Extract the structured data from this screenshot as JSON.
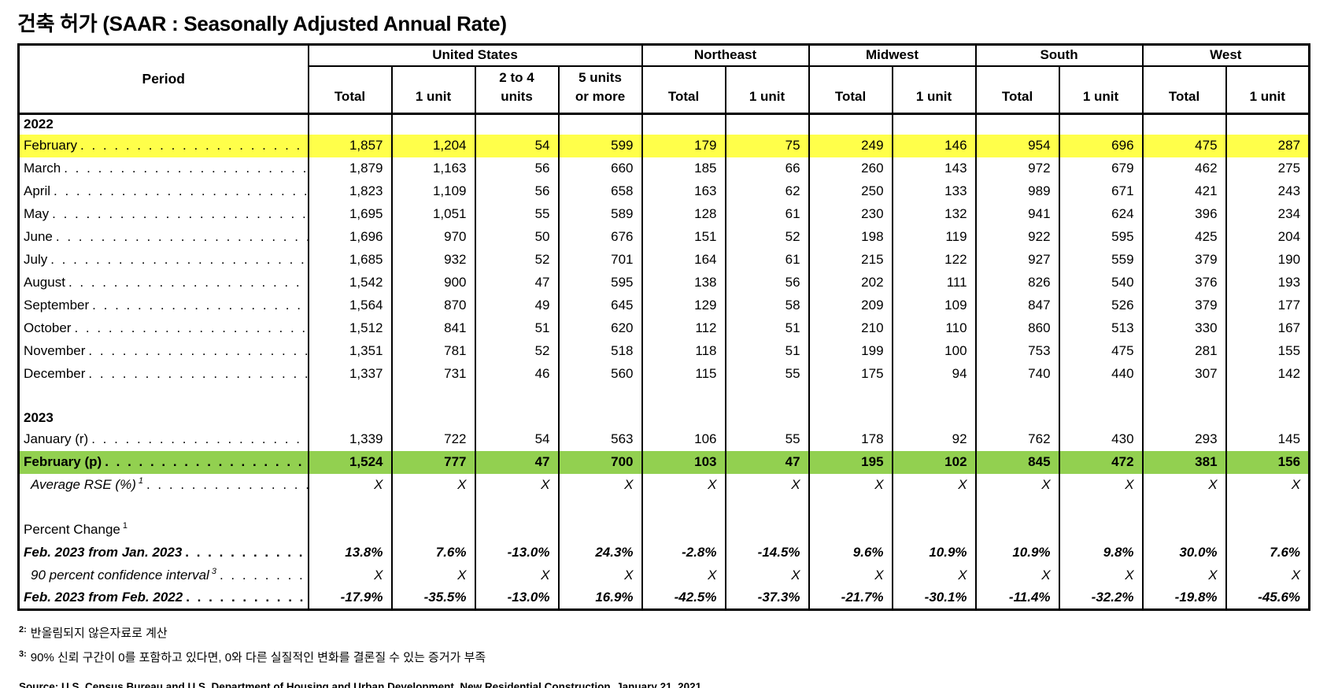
{
  "title": "건축 허가 (SAAR : Seasonally Adjusted Annual Rate)",
  "colors": {
    "highlight_yellow": "#FFFF4A",
    "highlight_green": "#92D050",
    "border": "#000000"
  },
  "table": {
    "period_header": "Period",
    "groups": [
      {
        "label": "United States",
        "span": 4
      },
      {
        "label": "Northeast",
        "span": 2
      },
      {
        "label": "Midwest",
        "span": 2
      },
      {
        "label": "South",
        "span": 2
      },
      {
        "label": "West",
        "span": 2
      }
    ],
    "sub_headers": [
      "Total",
      "1 unit",
      "2 to 4\nunits",
      "5 units\nor more",
      "Total",
      "1 unit",
      "Total",
      "1 unit",
      "Total",
      "1 unit",
      "Total",
      "1 unit"
    ],
    "rows": [
      {
        "type": "year",
        "label": "2022"
      },
      {
        "type": "data",
        "label": "February",
        "highlight": "yellow",
        "values": [
          "1,857",
          "1,204",
          "54",
          "599",
          "179",
          "75",
          "249",
          "146",
          "954",
          "696",
          "475",
          "287"
        ]
      },
      {
        "type": "data",
        "label": "March",
        "values": [
          "1,879",
          "1,163",
          "56",
          "660",
          "185",
          "66",
          "260",
          "143",
          "972",
          "679",
          "462",
          "275"
        ]
      },
      {
        "type": "data",
        "label": "April",
        "values": [
          "1,823",
          "1,109",
          "56",
          "658",
          "163",
          "62",
          "250",
          "133",
          "989",
          "671",
          "421",
          "243"
        ]
      },
      {
        "type": "data",
        "label": "May",
        "values": [
          "1,695",
          "1,051",
          "55",
          "589",
          "128",
          "61",
          "230",
          "132",
          "941",
          "624",
          "396",
          "234"
        ]
      },
      {
        "type": "data",
        "label": "June",
        "values": [
          "1,696",
          "970",
          "50",
          "676",
          "151",
          "52",
          "198",
          "119",
          "922",
          "595",
          "425",
          "204"
        ]
      },
      {
        "type": "data",
        "label": "July",
        "values": [
          "1,685",
          "932",
          "52",
          "701",
          "164",
          "61",
          "215",
          "122",
          "927",
          "559",
          "379",
          "190"
        ]
      },
      {
        "type": "data",
        "label": "August",
        "values": [
          "1,542",
          "900",
          "47",
          "595",
          "138",
          "56",
          "202",
          "111",
          "826",
          "540",
          "376",
          "193"
        ]
      },
      {
        "type": "data",
        "label": "September",
        "values": [
          "1,564",
          "870",
          "49",
          "645",
          "129",
          "58",
          "209",
          "109",
          "847",
          "526",
          "379",
          "177"
        ]
      },
      {
        "type": "data",
        "label": "October",
        "values": [
          "1,512",
          "841",
          "51",
          "620",
          "112",
          "51",
          "210",
          "110",
          "860",
          "513",
          "330",
          "167"
        ]
      },
      {
        "type": "data",
        "label": "November",
        "values": [
          "1,351",
          "781",
          "52",
          "518",
          "118",
          "51",
          "199",
          "100",
          "753",
          "475",
          "281",
          "155"
        ]
      },
      {
        "type": "data",
        "label": "December",
        "values": [
          "1,337",
          "731",
          "46",
          "560",
          "115",
          "55",
          "175",
          "94",
          "740",
          "440",
          "307",
          "142"
        ]
      },
      {
        "type": "blank"
      },
      {
        "type": "year",
        "label": "2023"
      },
      {
        "type": "data",
        "label": "January (r)",
        "values": [
          "1,339",
          "722",
          "54",
          "563",
          "106",
          "55",
          "178",
          "92",
          "762",
          "430",
          "293",
          "145"
        ]
      },
      {
        "type": "data",
        "label": "February (p)",
        "highlight": "green",
        "bold": true,
        "values": [
          "1,524",
          "777",
          "47",
          "700",
          "103",
          "47",
          "195",
          "102",
          "845",
          "472",
          "381",
          "156"
        ]
      },
      {
        "type": "data",
        "label": "Average RSE (%)",
        "sup": "1",
        "italic": true,
        "indent": true,
        "values": [
          "X",
          "X",
          "X",
          "X",
          "X",
          "X",
          "X",
          "X",
          "X",
          "X",
          "X",
          "X"
        ]
      },
      {
        "type": "blank"
      },
      {
        "type": "section",
        "label": "Percent Change",
        "sup": "1"
      },
      {
        "type": "data",
        "label": "Feb. 2023 from Jan. 2023",
        "bold_italic": true,
        "values": [
          "13.8%",
          "7.6%",
          "-13.0%",
          "24.3%",
          "-2.8%",
          "-14.5%",
          "9.6%",
          "10.9%",
          "10.9%",
          "9.8%",
          "30.0%",
          "7.6%"
        ]
      },
      {
        "type": "data",
        "label": "90 percent confidence interval",
        "sup": "3",
        "italic": true,
        "indent": true,
        "values": [
          "X",
          "X",
          "X",
          "X",
          "X",
          "X",
          "X",
          "X",
          "X",
          "X",
          "X",
          "X"
        ]
      },
      {
        "type": "data",
        "label": "Feb. 2023 from Feb. 2022",
        "bold_italic": true,
        "values": [
          "-17.9%",
          "-35.5%",
          "-13.0%",
          "16.9%",
          "-42.5%",
          "-37.3%",
          "-21.7%",
          "-30.1%",
          "-11.4%",
          "-32.2%",
          "-19.8%",
          "-45.6%"
        ]
      }
    ]
  },
  "footnotes": [
    {
      "sup": "2:",
      "text": "반올림되지 않은자료로 계산"
    },
    {
      "sup": "3:",
      "text": "90% 신뢰 구간이 0를 포함하고 있다면, 0와 다른 실질적인 변화를 결론질 수 있는 증거가 부족"
    }
  ],
  "source": "Source: U.S. Census Bureau and U.S. Department of Housing and Urban Development, New Residential Construction, January 21, 2021."
}
